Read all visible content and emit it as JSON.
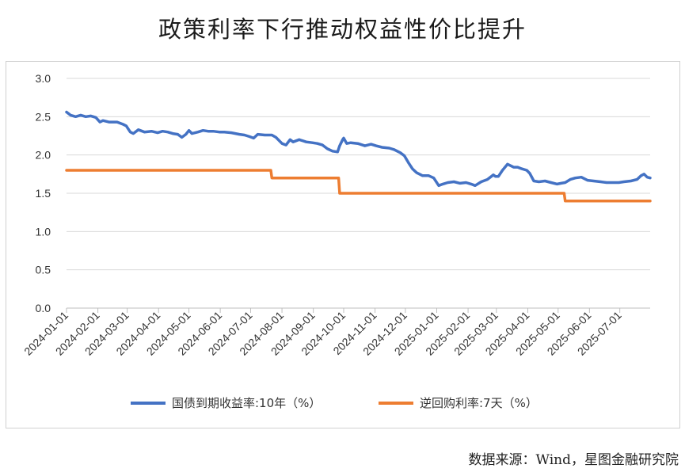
{
  "title": "政策利率下行推动权益性价比提升",
  "source": "数据来源：Wind，星图金融研究院",
  "chart_data": {
    "type": "line",
    "title": "政策利率下行推动权益性价比提升",
    "xlabel": "",
    "ylabel": "",
    "ylim": [
      0,
      3.0
    ],
    "xlim": [
      "2024-01-01",
      "2025-07-31"
    ],
    "yticks": [
      "0.0",
      "0.5",
      "1.0",
      "1.5",
      "2.0",
      "2.5",
      "3.0"
    ],
    "xticks": [
      "2024-01-01",
      "2024-02-01",
      "2024-03-01",
      "2024-04-01",
      "2024-05-01",
      "2024-06-01",
      "2024-07-01",
      "2024-08-01",
      "2024-09-01",
      "2024-10-01",
      "2024-11-01",
      "2024-12-01",
      "2025-01-01",
      "2025-02-01",
      "2025-03-01",
      "2025-04-01",
      "2025-05-01",
      "2025-06-01",
      "2025-07-01"
    ],
    "grid": true,
    "legend_position": "bottom",
    "series": [
      {
        "name": "国债到期收益率:10年（%）",
        "color": "#4472C4",
        "points": [
          [
            "2024-01-01",
            2.56
          ],
          [
            "2024-01-05",
            2.52
          ],
          [
            "2024-01-10",
            2.5
          ],
          [
            "2024-01-15",
            2.52
          ],
          [
            "2024-01-20",
            2.5
          ],
          [
            "2024-01-25",
            2.51
          ],
          [
            "2024-01-30",
            2.49
          ],
          [
            "2024-02-03",
            2.43
          ],
          [
            "2024-02-06",
            2.45
          ],
          [
            "2024-02-12",
            2.43
          ],
          [
            "2024-02-20",
            2.43
          ],
          [
            "2024-02-26",
            2.4
          ],
          [
            "2024-02-29",
            2.38
          ],
          [
            "2024-03-04",
            2.3
          ],
          [
            "2024-03-07",
            2.28
          ],
          [
            "2024-03-12",
            2.33
          ],
          [
            "2024-03-18",
            2.3
          ],
          [
            "2024-03-25",
            2.31
          ],
          [
            "2024-03-31",
            2.29
          ],
          [
            "2024-04-05",
            2.31
          ],
          [
            "2024-04-10",
            2.3
          ],
          [
            "2024-04-15",
            2.28
          ],
          [
            "2024-04-20",
            2.27
          ],
          [
            "2024-04-24",
            2.23
          ],
          [
            "2024-04-28",
            2.27
          ],
          [
            "2024-05-01",
            2.32
          ],
          [
            "2024-05-04",
            2.28
          ],
          [
            "2024-05-10",
            2.3
          ],
          [
            "2024-05-15",
            2.32
          ],
          [
            "2024-05-20",
            2.31
          ],
          [
            "2024-05-25",
            2.31
          ],
          [
            "2024-05-31",
            2.3
          ],
          [
            "2024-06-05",
            2.3
          ],
          [
            "2024-06-12",
            2.29
          ],
          [
            "2024-06-20",
            2.27
          ],
          [
            "2024-06-25",
            2.26
          ],
          [
            "2024-06-30",
            2.24
          ],
          [
            "2024-07-04",
            2.22
          ],
          [
            "2024-07-08",
            2.27
          ],
          [
            "2024-07-15",
            2.26
          ],
          [
            "2024-07-22",
            2.26
          ],
          [
            "2024-07-26",
            2.23
          ],
          [
            "2024-08-01",
            2.15
          ],
          [
            "2024-08-05",
            2.13
          ],
          [
            "2024-08-09",
            2.2
          ],
          [
            "2024-08-12",
            2.17
          ],
          [
            "2024-08-18",
            2.2
          ],
          [
            "2024-08-25",
            2.17
          ],
          [
            "2024-08-31",
            2.16
          ],
          [
            "2024-09-05",
            2.15
          ],
          [
            "2024-09-10",
            2.13
          ],
          [
            "2024-09-15",
            2.08
          ],
          [
            "2024-09-20",
            2.05
          ],
          [
            "2024-09-25",
            2.04
          ],
          [
            "2024-09-27",
            2.12
          ],
          [
            "2024-09-30",
            2.2
          ],
          [
            "2024-10-01",
            2.22
          ],
          [
            "2024-10-04",
            2.15
          ],
          [
            "2024-10-08",
            2.16
          ],
          [
            "2024-10-15",
            2.15
          ],
          [
            "2024-10-22",
            2.12
          ],
          [
            "2024-10-28",
            2.14
          ],
          [
            "2024-11-02",
            2.12
          ],
          [
            "2024-11-08",
            2.1
          ],
          [
            "2024-11-15",
            2.09
          ],
          [
            "2024-11-20",
            2.07
          ],
          [
            "2024-11-26",
            2.03
          ],
          [
            "2024-11-30",
            1.99
          ],
          [
            "2024-12-04",
            1.9
          ],
          [
            "2024-12-08",
            1.82
          ],
          [
            "2024-12-12",
            1.77
          ],
          [
            "2024-12-18",
            1.73
          ],
          [
            "2024-12-24",
            1.73
          ],
          [
            "2024-12-29",
            1.7
          ],
          [
            "2025-01-03",
            1.6
          ],
          [
            "2025-01-07",
            1.62
          ],
          [
            "2025-01-12",
            1.64
          ],
          [
            "2025-01-18",
            1.65
          ],
          [
            "2025-01-24",
            1.63
          ],
          [
            "2025-01-30",
            1.64
          ],
          [
            "2025-02-04",
            1.62
          ],
          [
            "2025-02-08",
            1.6
          ],
          [
            "2025-02-14",
            1.65
          ],
          [
            "2025-02-20",
            1.68
          ],
          [
            "2025-02-26",
            1.74
          ],
          [
            "2025-02-28",
            1.72
          ],
          [
            "2025-03-03",
            1.72
          ],
          [
            "2025-03-07",
            1.8
          ],
          [
            "2025-03-12",
            1.88
          ],
          [
            "2025-03-18",
            1.84
          ],
          [
            "2025-03-22",
            1.84
          ],
          [
            "2025-03-26",
            1.82
          ],
          [
            "2025-03-31",
            1.8
          ],
          [
            "2025-04-03",
            1.76
          ],
          [
            "2025-04-07",
            1.66
          ],
          [
            "2025-04-12",
            1.65
          ],
          [
            "2025-04-18",
            1.66
          ],
          [
            "2025-04-24",
            1.64
          ],
          [
            "2025-04-30",
            1.62
          ],
          [
            "2025-05-04",
            1.63
          ],
          [
            "2025-05-08",
            1.64
          ],
          [
            "2025-05-13",
            1.68
          ],
          [
            "2025-05-18",
            1.7
          ],
          [
            "2025-05-24",
            1.71
          ],
          [
            "2025-05-30",
            1.67
          ],
          [
            "2025-06-05",
            1.66
          ],
          [
            "2025-06-12",
            1.65
          ],
          [
            "2025-06-18",
            1.64
          ],
          [
            "2025-06-25",
            1.64
          ],
          [
            "2025-06-30",
            1.64
          ],
          [
            "2025-07-05",
            1.65
          ],
          [
            "2025-07-12",
            1.66
          ],
          [
            "2025-07-18",
            1.68
          ],
          [
            "2025-07-22",
            1.73
          ],
          [
            "2025-07-25",
            1.75
          ],
          [
            "2025-07-28",
            1.71
          ],
          [
            "2025-07-31",
            1.7
          ]
        ]
      },
      {
        "name": "逆回购利率:7天（%）",
        "color": "#ED7D31",
        "points": [
          [
            "2024-01-01",
            1.8
          ],
          [
            "2024-07-21",
            1.8
          ],
          [
            "2024-07-22",
            1.7
          ],
          [
            "2024-09-26",
            1.7
          ],
          [
            "2024-09-27",
            1.5
          ],
          [
            "2025-05-07",
            1.5
          ],
          [
            "2025-05-08",
            1.4
          ],
          [
            "2025-07-31",
            1.4
          ]
        ]
      }
    ]
  }
}
